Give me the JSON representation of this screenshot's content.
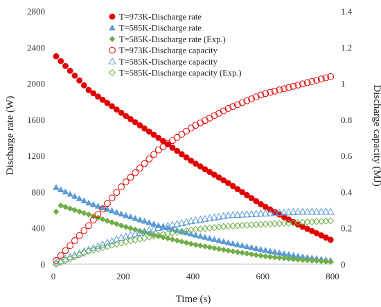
{
  "chart_data": {
    "type": "scatter",
    "title": "",
    "xlabel": "Time (s)",
    "ylabel_left": "Discharge rate (W)",
    "ylabel_right": "Discharge capacity (MJ)",
    "xlim": [
      0,
      800
    ],
    "ylim_left": [
      0,
      2800
    ],
    "ylim_right": [
      0,
      1.4
    ],
    "x_ticks": [
      "0",
      "200",
      "400",
      "600",
      "800"
    ],
    "y_left_ticks": [
      "0",
      "400",
      "800",
      "1200",
      "1600",
      "2000",
      "2400",
      "2800"
    ],
    "y_right_ticks": [
      "0",
      "0.2",
      "0.4",
      "0.6",
      "0.8",
      "1",
      "1.2",
      "1.4"
    ],
    "grid": false,
    "legend_position": "top-center",
    "series": [
      {
        "name": "T=973K-Discharge rate",
        "axis": "left",
        "marker": "circle-filled",
        "color": "#e00000",
        "x": [
          8,
          100,
          200,
          300,
          400,
          500,
          600,
          700,
          800
        ],
        "y": [
          2300,
          1930,
          1660,
          1400,
          1130,
          900,
          650,
          440,
          260
        ]
      },
      {
        "name": "T=585K-Discharge rate",
        "axis": "left",
        "marker": "triangle-filled",
        "color": "#5b9bd5",
        "x": [
          8,
          100,
          200,
          300,
          400,
          500,
          600,
          700,
          800
        ],
        "y": [
          850,
          680,
          550,
          430,
          330,
          240,
          160,
          90,
          40
        ]
      },
      {
        "name": "T=585K-Discharge rate (Exp.)",
        "axis": "left",
        "marker": "diamond-filled",
        "color": "#70ad47",
        "x": [
          8,
          20,
          100,
          200,
          300,
          400,
          500,
          600,
          700,
          800
        ],
        "y": [
          580,
          650,
          550,
          420,
          310,
          220,
          150,
          90,
          50,
          25
        ]
      },
      {
        "name": "T=973K-Discharge capacity",
        "axis": "right",
        "marker": "circle-open",
        "color": "#e00000",
        "x": [
          8,
          100,
          200,
          300,
          400,
          500,
          600,
          700,
          800
        ],
        "y": [
          0.02,
          0.21,
          0.44,
          0.63,
          0.76,
          0.86,
          0.94,
          0.99,
          1.04
        ]
      },
      {
        "name": "T=585K-Discharge capacity",
        "axis": "right",
        "marker": "triangle-open",
        "color": "#5b9bd5",
        "x": [
          8,
          100,
          200,
          300,
          400,
          500,
          600,
          700,
          800
        ],
        "y": [
          0.01,
          0.08,
          0.15,
          0.2,
          0.24,
          0.27,
          0.28,
          0.29,
          0.29
        ]
      },
      {
        "name": "T=585K-Discharge capacity (Exp.)",
        "axis": "right",
        "marker": "diamond-open",
        "color": "#70ad47",
        "x": [
          8,
          100,
          200,
          300,
          400,
          500,
          600,
          700,
          800
        ],
        "y": [
          0.0,
          0.07,
          0.12,
          0.16,
          0.19,
          0.21,
          0.22,
          0.23,
          0.24
        ]
      }
    ]
  }
}
